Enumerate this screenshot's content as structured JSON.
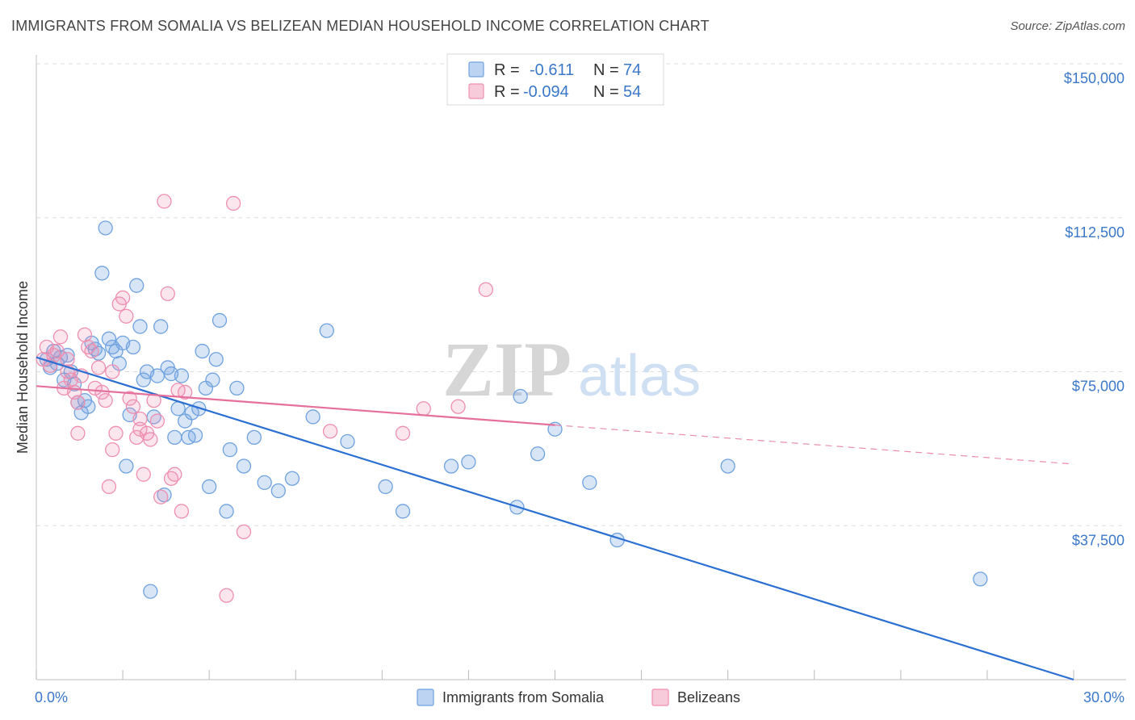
{
  "title": "IMMIGRANTS FROM SOMALIA VS BELIZEAN MEDIAN HOUSEHOLD INCOME CORRELATION CHART",
  "source": "Source: ZipAtlas.com",
  "watermark": {
    "zip": "ZIP",
    "atlas": "atlas"
  },
  "legend_top": {
    "rows": [
      {
        "r_label": "R = ",
        "r_value": "-0.611",
        "n_label": "N = ",
        "n_value": "74",
        "color": "#6fa2e0"
      },
      {
        "r_label": "R = ",
        "r_value": "-0.094",
        "n_label": "N = ",
        "n_value": "54",
        "color": "#ef8fb0"
      }
    ]
  },
  "legend_bottom": {
    "items": [
      {
        "label": "Immigrants from Somalia",
        "color": "#6fa2e0"
      },
      {
        "label": "Belizeans",
        "color": "#ef8fb0"
      }
    ]
  },
  "chart_data": {
    "type": "scatter",
    "ylabel": "Median Household Income",
    "x_tick_labels": {
      "min": "0.0%",
      "max": "30.0%"
    },
    "y_tick_labels": [
      "$37,500",
      "$75,000",
      "$112,500",
      "$150,000"
    ],
    "xlim": [
      0,
      30
    ],
    "ylim": [
      0,
      155000
    ],
    "y_ticks": [
      37500,
      75000,
      112500,
      150000
    ],
    "grid": true,
    "series": [
      {
        "name": "Immigrants from Somalia",
        "color": "#6fa2e0",
        "trend": {
          "x": [
            0,
            30
          ],
          "y": [
            78500,
            0
          ],
          "style": "solid"
        },
        "points": [
          [
            0.3,
            78000
          ],
          [
            0.4,
            76000
          ],
          [
            0.5,
            80000
          ],
          [
            0.6,
            77000
          ],
          [
            0.7,
            78500
          ],
          [
            0.8,
            73000
          ],
          [
            0.9,
            79000
          ],
          [
            1.0,
            75000
          ],
          [
            1.1,
            72000
          ],
          [
            1.2,
            67500
          ],
          [
            1.3,
            65000
          ],
          [
            1.4,
            68000
          ],
          [
            1.5,
            66500
          ],
          [
            1.6,
            82000
          ],
          [
            1.7,
            80500
          ],
          [
            1.8,
            79500
          ],
          [
            1.9,
            99000
          ],
          [
            2.0,
            110000
          ],
          [
            2.1,
            83000
          ],
          [
            2.2,
            81000
          ],
          [
            2.3,
            80000
          ],
          [
            2.4,
            77000
          ],
          [
            2.5,
            82000
          ],
          [
            2.6,
            52000
          ],
          [
            2.7,
            64500
          ],
          [
            2.8,
            81000
          ],
          [
            2.9,
            96000
          ],
          [
            3.0,
            86000
          ],
          [
            3.1,
            73000
          ],
          [
            3.2,
            75000
          ],
          [
            3.3,
            21500
          ],
          [
            3.4,
            64000
          ],
          [
            3.5,
            74000
          ],
          [
            3.6,
            86000
          ],
          [
            3.7,
            45000
          ],
          [
            3.8,
            76000
          ],
          [
            3.9,
            74500
          ],
          [
            4.0,
            59000
          ],
          [
            4.1,
            66000
          ],
          [
            4.2,
            74000
          ],
          [
            4.3,
            63000
          ],
          [
            4.4,
            59000
          ],
          [
            4.5,
            65000
          ],
          [
            4.6,
            59500
          ],
          [
            4.7,
            66000
          ],
          [
            4.8,
            80000
          ],
          [
            4.9,
            71000
          ],
          [
            5.0,
            47000
          ],
          [
            5.1,
            73000
          ],
          [
            5.2,
            78000
          ],
          [
            5.3,
            87500
          ],
          [
            5.5,
            41000
          ],
          [
            5.6,
            56000
          ],
          [
            5.8,
            71000
          ],
          [
            6.0,
            52000
          ],
          [
            6.3,
            59000
          ],
          [
            6.6,
            48000
          ],
          [
            7.0,
            46000
          ],
          [
            7.4,
            49000
          ],
          [
            8.4,
            85000
          ],
          [
            9.0,
            58000
          ],
          [
            10.1,
            47000
          ],
          [
            10.6,
            41000
          ],
          [
            12.0,
            52000
          ],
          [
            12.5,
            53000
          ],
          [
            13.9,
            42000
          ],
          [
            14.0,
            69000
          ],
          [
            14.5,
            55000
          ],
          [
            15.0,
            61000
          ],
          [
            16.0,
            48000
          ],
          [
            16.8,
            34000
          ],
          [
            20.0,
            52000
          ],
          [
            27.3,
            24500
          ],
          [
            8.0,
            64000
          ]
        ]
      },
      {
        "name": "Belizeans",
        "color": "#ef8fb0",
        "trend": {
          "x": [
            0,
            15
          ],
          "y": [
            71500,
            62000
          ],
          "style": "solid",
          "dashed_extension": {
            "x": [
              15,
              30
            ],
            "y": [
              62000,
              52500
            ]
          }
        },
        "points": [
          [
            0.2,
            78000
          ],
          [
            0.3,
            81000
          ],
          [
            0.4,
            76500
          ],
          [
            0.5,
            79000
          ],
          [
            0.6,
            80000
          ],
          [
            0.7,
            83500
          ],
          [
            0.8,
            71000
          ],
          [
            0.9,
            75000
          ],
          [
            1.0,
            73000
          ],
          [
            1.1,
            70000
          ],
          [
            1.2,
            60000
          ],
          [
            1.3,
            74000
          ],
          [
            1.4,
            84000
          ],
          [
            1.5,
            81000
          ],
          [
            1.6,
            80000
          ],
          [
            1.7,
            71000
          ],
          [
            1.8,
            76000
          ],
          [
            1.9,
            70000
          ],
          [
            2.0,
            68000
          ],
          [
            2.1,
            47000
          ],
          [
            2.2,
            56000
          ],
          [
            2.3,
            60000
          ],
          [
            2.4,
            91500
          ],
          [
            2.5,
            93000
          ],
          [
            2.6,
            88500
          ],
          [
            2.7,
            68500
          ],
          [
            2.8,
            66500
          ],
          [
            2.9,
            59000
          ],
          [
            3.0,
            61000
          ],
          [
            3.1,
            50000
          ],
          [
            3.2,
            60000
          ],
          [
            3.3,
            58500
          ],
          [
            3.4,
            68000
          ],
          [
            3.5,
            63000
          ],
          [
            3.6,
            44500
          ],
          [
            3.7,
            116500
          ],
          [
            3.8,
            94000
          ],
          [
            3.9,
            49000
          ],
          [
            4.0,
            50000
          ],
          [
            4.1,
            70500
          ],
          [
            4.2,
            41000
          ],
          [
            4.3,
            70000
          ],
          [
            5.7,
            116000
          ],
          [
            5.5,
            20500
          ],
          [
            6.0,
            36000
          ],
          [
            8.5,
            60500
          ],
          [
            10.6,
            60000
          ],
          [
            11.2,
            66000
          ],
          [
            12.2,
            66500
          ],
          [
            13.0,
            95000
          ],
          [
            1.2,
            67500
          ],
          [
            2.2,
            75000
          ],
          [
            3.0,
            63500
          ],
          [
            0.9,
            78000
          ]
        ]
      }
    ]
  }
}
